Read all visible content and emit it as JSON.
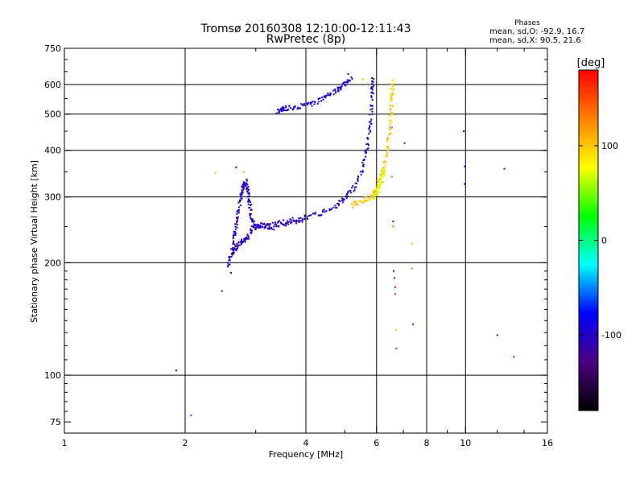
{
  "chart_data": {
    "type": "scatter",
    "title": "Tromsø 20160308 12:10:00-12:11:43",
    "subtitle": "RwPretec (8p)",
    "xlabel": "Frequency [MHz]",
    "ylabel": "Stationary phase Virtual Height [km]",
    "xscale": "log",
    "yscale": "log",
    "xlim": [
      1,
      16
    ],
    "ylim": [
      70,
      750
    ],
    "x_ticks": [
      1,
      2,
      4,
      6,
      8,
      10,
      16
    ],
    "x_tick_labels": [
      "1",
      "2",
      "4",
      "6",
      "8",
      "10",
      "16"
    ],
    "x_grid": [
      2,
      4,
      6,
      8,
      10
    ],
    "y_ticks": [
      75,
      100,
      200,
      300,
      400,
      500,
      600,
      750
    ],
    "y_tick_labels": [
      "75",
      "100",
      "200",
      "300",
      "400",
      "500",
      "600",
      "750"
    ],
    "y_grid": [
      100,
      200,
      300,
      400,
      500,
      600
    ],
    "grid": true,
    "stats": {
      "heading": "Phases",
      "line_o": "mean, sd,O: -92.9, 16.7",
      "line_x": "mean, sd,X:  90.5, 21.6"
    },
    "colorbar": {
      "label": "[deg]",
      "range": [
        -180,
        180
      ],
      "ticks": [
        100,
        0,
        -100
      ],
      "tick_labels": [
        "100",
        "0",
        "-100"
      ],
      "colors": [
        "#ff0000",
        "#ff8000",
        "#ffff00",
        "#00ff00",
        "#00ffff",
        "#0000ff",
        "#4b0082",
        "#000000"
      ]
    },
    "color_scale_note": "",
    "points": [
      [
        1.9,
        103,
        -110
      ],
      [
        2.07,
        78,
        -60
      ],
      [
        2.38,
        348,
        100
      ],
      [
        2.47,
        168,
        -70
      ],
      [
        2.6,
        188,
        -100
      ],
      [
        2.68,
        360,
        -90
      ],
      [
        2.8,
        350,
        120
      ],
      [
        5.1,
        640,
        -110
      ],
      [
        5.55,
        620,
        110
      ],
      [
        6.55,
        460,
        -60
      ],
      [
        6.55,
        340,
        150
      ],
      [
        6.6,
        258,
        -120
      ],
      [
        6.6,
        250,
        150
      ],
      [
        6.62,
        190,
        -100
      ],
      [
        6.65,
        182,
        -70
      ],
      [
        6.68,
        172,
        170
      ],
      [
        6.68,
        165,
        160
      ],
      [
        6.7,
        132,
        100
      ],
      [
        6.72,
        118,
        170
      ],
      [
        7.05,
        418,
        -70
      ],
      [
        7.35,
        225,
        110
      ],
      [
        7.35,
        193,
        130
      ],
      [
        7.4,
        137,
        -70
      ],
      [
        9.9,
        450,
        -110
      ],
      [
        9.95,
        362,
        -110
      ],
      [
        9.95,
        325,
        -90
      ],
      [
        12.5,
        357,
        -110
      ],
      [
        12.0,
        128,
        -70
      ],
      [
        13.2,
        112,
        -60
      ]
    ],
    "series": [
      {
        "mode": "polyline",
        "phase": -100,
        "points": [
          [
            2.56,
            195
          ],
          [
            2.62,
            215
          ],
          [
            2.66,
            240
          ],
          [
            2.7,
            265
          ],
          [
            2.74,
            290
          ],
          [
            2.78,
            318
          ],
          [
            2.83,
            330
          ],
          [
            2.87,
            310
          ],
          [
            2.9,
            285
          ],
          [
            2.93,
            262
          ],
          [
            3.0,
            250
          ],
          [
            3.2,
            253
          ],
          [
            3.5,
            257
          ],
          [
            3.9,
            263
          ],
          [
            4.3,
            270
          ],
          [
            4.7,
            282
          ],
          [
            5.0,
            298
          ],
          [
            5.3,
            320
          ],
          [
            5.55,
            360
          ],
          [
            5.7,
            410
          ],
          [
            5.8,
            480
          ],
          [
            5.85,
            560
          ],
          [
            5.88,
            630
          ]
        ]
      },
      {
        "mode": "polyline",
        "phase": -105,
        "points": [
          [
            2.62,
            212
          ],
          [
            2.7,
            222
          ],
          [
            2.78,
            228
          ],
          [
            2.86,
            232
          ],
          [
            2.95,
            248
          ],
          [
            3.1,
            252
          ],
          [
            3.3,
            248
          ],
          [
            3.6,
            255
          ],
          [
            4.0,
            262
          ]
        ]
      },
      {
        "mode": "polyline",
        "phase": -95,
        "points": [
          [
            3.4,
            508
          ],
          [
            3.5,
            515
          ],
          [
            3.6,
            520
          ],
          [
            3.9,
            525
          ],
          [
            4.2,
            535
          ],
          [
            4.5,
            560
          ],
          [
            4.8,
            580
          ],
          [
            5.0,
            600
          ],
          [
            5.2,
            630
          ]
        ]
      },
      {
        "mode": "polyline",
        "phase": 100,
        "points": [
          [
            5.2,
            285
          ],
          [
            5.5,
            292
          ],
          [
            5.8,
            300
          ],
          [
            6.0,
            315
          ],
          [
            6.2,
            345
          ],
          [
            6.35,
            390
          ],
          [
            6.45,
            440
          ],
          [
            6.52,
            500
          ],
          [
            6.56,
            560
          ],
          [
            6.58,
            620
          ]
        ]
      },
      {
        "mode": "polyline",
        "phase": 70,
        "points": [
          [
            5.9,
            295
          ],
          [
            6.0,
            305
          ],
          [
            6.1,
            320
          ],
          [
            6.2,
            335
          ],
          [
            6.3,
            355
          ]
        ]
      }
    ]
  }
}
